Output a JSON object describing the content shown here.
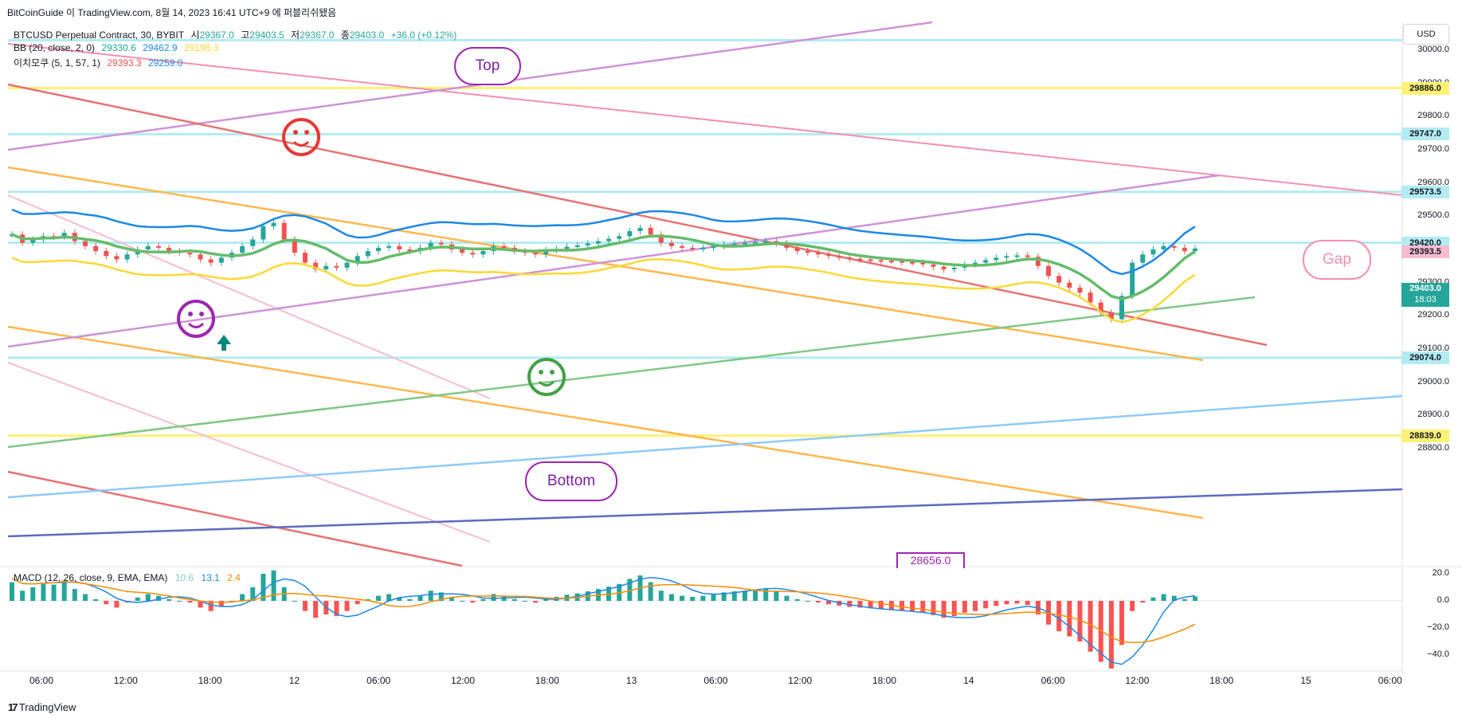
{
  "header": {
    "publisher": "BitCoinGuide 이 TradingView.com, 8월 14, 2023 16:41 UTC+9 에 퍼블리쉬됐음"
  },
  "legend": {
    "symbol": "BTCUSD Perpetual Contract, 30, BYBIT",
    "ohlc": {
      "open_label": "시",
      "open": "29367.0",
      "high_label": "고",
      "high": "29403.5",
      "low_label": "저",
      "low": "29367.0",
      "close_label": "종",
      "close": "29403.0",
      "change": "+36.0 (+0.12%)"
    },
    "bb": {
      "label": "BB (20, close, 2, 0)",
      "basis": "29330.6",
      "upper": "29462.9",
      "lower": "29198.3"
    },
    "ichimoku": {
      "label": "이치모쿠 (5, 1, 57, 1)",
      "v1": "29393.3",
      "v2": "29259.0"
    }
  },
  "currency_button": "USD",
  "price_axis": {
    "ticks": [
      "30000.0",
      "29900.0",
      "29800.0",
      "29700.0",
      "29600.0",
      "29500.0",
      "29400.0",
      "29300.0",
      "29200.0",
      "29100.0",
      "29000.0",
      "28900.0",
      "28800.0"
    ],
    "badges": [
      {
        "text": "29886.0",
        "bg": "#fff176"
      },
      {
        "text": "29747.0",
        "bg": "#b2ebf2"
      },
      {
        "text": "29573.5",
        "bg": "#b2ebf2"
      },
      {
        "text": "29420.0",
        "bg": "#b2ebf2"
      },
      {
        "text": "29393.5",
        "bg": "#f8bbd0"
      },
      {
        "text": "29074.0",
        "bg": "#b2ebf2"
      },
      {
        "text": "28839.0",
        "bg": "#fff176"
      }
    ],
    "last_price": "29403.0",
    "countdown": "18:03"
  },
  "time_axis": [
    "06:00",
    "12:00",
    "18:00",
    "12",
    "06:00",
    "12:00",
    "18:00",
    "13",
    "06:00",
    "12:00",
    "18:00",
    "14",
    "06:00",
    "12:00",
    "18:00",
    "15",
    "06:00"
  ],
  "annotations": {
    "top": "Top",
    "bottom": "Bottom",
    "gap": "Gap",
    "floating_price": "28656.0"
  },
  "macd": {
    "label": "MACD (12, 26, close, 9, EMA, EMA)",
    "hist": "10.6",
    "macd": "13.1",
    "signal": "2.4",
    "ticks": [
      "20.0",
      "0.0",
      "−20.0",
      "−40.0"
    ]
  },
  "footer": "TradingView",
  "colors": {
    "up": "#26a69a",
    "down": "#ef5350",
    "bb_upper": "#1e88e5",
    "bb_lower": "#fdd835",
    "bb_basis": "#66bb6a",
    "cloud": "#bbdefb",
    "cloud_red": "#f8bbd0"
  },
  "chart_data": {
    "type": "candlestick",
    "symbol": "BTCUSD",
    "interval": "30",
    "ylim": [
      28700,
      30050
    ],
    "macd_ylim": [
      -45,
      25
    ],
    "price_series": [
      29445,
      29420,
      29430,
      29440,
      29438,
      29450,
      29425,
      29410,
      29395,
      29380,
      29370,
      29385,
      29400,
      29410,
      29405,
      29395,
      29390,
      29385,
      29370,
      29360,
      29375,
      29390,
      29410,
      29430,
      29470,
      29480,
      29430,
      29390,
      29360,
      29340,
      29350,
      29345,
      29360,
      29380,
      29395,
      29405,
      29410,
      29400,
      29395,
      29405,
      29420,
      29415,
      29400,
      29390,
      29385,
      29395,
      29410,
      29405,
      29395,
      29390,
      29385,
      29398,
      29402,
      29408,
      29412,
      29418,
      29425,
      29432,
      29440,
      29455,
      29465,
      29445,
      29420,
      29410,
      29405,
      29402,
      29405,
      29410,
      29415,
      29418,
      29420,
      29422,
      29425,
      29418,
      29405,
      29395,
      29390,
      29385,
      29380,
      29376,
      29372,
      29370,
      29368,
      29366,
      29365,
      29362,
      29360,
      29355,
      29348,
      29340,
      29345,
      29355,
      29360,
      29368,
      29375,
      29380,
      29382,
      29378,
      29350,
      29320,
      29300,
      29285,
      29270,
      29240,
      29210,
      29190,
      29260,
      29360,
      29385,
      29400,
      29410,
      29405,
      29395,
      29403
    ]
  }
}
